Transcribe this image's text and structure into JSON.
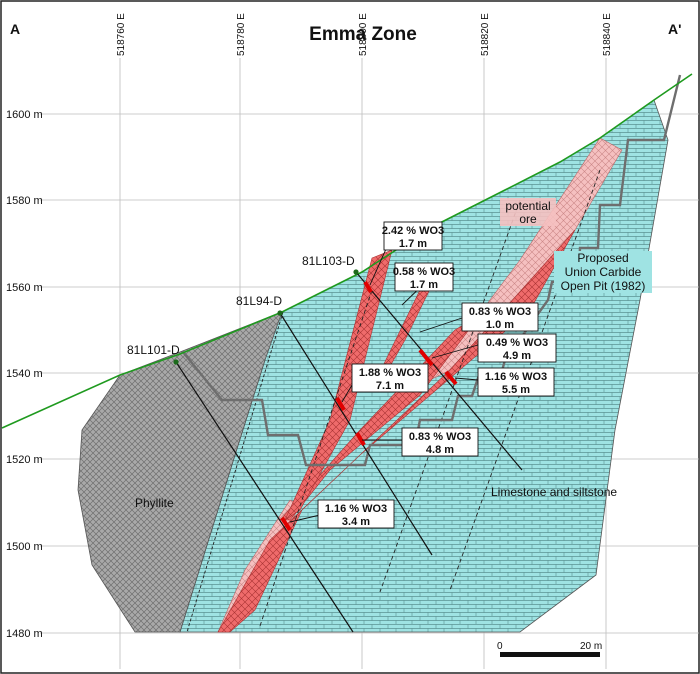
{
  "title": "Emma Zone",
  "section_ends": {
    "left": "A",
    "right": "A'"
  },
  "eastings": [
    "518760 E",
    "518780 E",
    "518800 E",
    "518820 E",
    "518840 E"
  ],
  "elevations": [
    "1600 m",
    "1580 m",
    "1560 m",
    "1540 m",
    "1520 m",
    "1500 m",
    "1480 m"
  ],
  "drill_holes": [
    "81L101-D",
    "81L94-D",
    "81L103-D"
  ],
  "assays": [
    {
      "grade": "2.42 % WO3",
      "width": "1.7 m"
    },
    {
      "grade": "0.58 % WO3",
      "width": "1.7 m"
    },
    {
      "grade": "0.83 % WO3",
      "width": "1.0 m"
    },
    {
      "grade": "0.49 % WO3",
      "width": "4.9 m"
    },
    {
      "grade": "1.16 % WO3",
      "width": "5.5 m"
    },
    {
      "grade": "1.88 % WO3",
      "width": "7.1 m"
    },
    {
      "grade": "0.83 % WO3",
      "width": "4.8 m"
    },
    {
      "grade": "1.16 % WO3",
      "width": "3.4 m"
    }
  ],
  "units": {
    "phyllite": "Phyllite",
    "limestone": "Limestone and siltstone",
    "potential_ore_line1": "potential",
    "potential_ore_line2": "ore",
    "pit_line1": "Proposed",
    "pit_line2": "Union Carbide",
    "pit_line3": "Open Pit (1982)"
  },
  "scale_bar": {
    "start": "0",
    "end": "20 m"
  },
  "colors": {
    "limestone": "#9fe3e3",
    "phyllite": "#a9a9a9",
    "ore_zone": "#ef6b6b",
    "potential_ore": "#f5c0c0",
    "topography": "#1f9a1f",
    "pit_outline": "#6e6e6e",
    "high_grade": "#e00000"
  }
}
